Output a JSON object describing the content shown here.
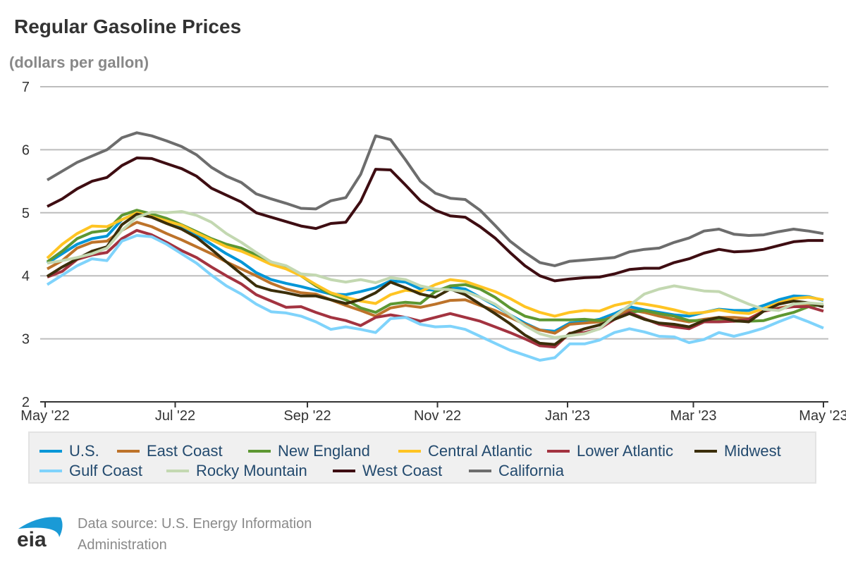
{
  "title": "Regular Gasoline Prices",
  "subtitle": "(dollars per gallon)",
  "source": "Data source: U.S. Energy Information Administration",
  "logo_text": "eia",
  "chart_data": {
    "type": "line",
    "title": "Regular Gasoline Prices",
    "ylabel": "(dollars per gallon)",
    "xlim": [
      "2022-05-01",
      "2023-05-01"
    ],
    "ylim": [
      2,
      7
    ],
    "yticks": [
      2,
      3,
      4,
      5,
      6,
      7
    ],
    "xticks": [
      {
        "date": "2022-05-01",
        "label": "May '22"
      },
      {
        "date": "2022-07-01",
        "label": "Jul '22"
      },
      {
        "date": "2022-09-01",
        "label": "Sep '22"
      },
      {
        "date": "2022-11-01",
        "label": "Nov '22"
      },
      {
        "date": "2023-01-01",
        "label": "Jan '23"
      },
      {
        "date": "2023-03-01",
        "label": "Mar '23"
      },
      {
        "date": "2023-05-01",
        "label": "May '23"
      }
    ],
    "grid": "horizontal",
    "legend_placement": "bottom",
    "x": [
      "2022-05-02",
      "2022-05-09",
      "2022-05-16",
      "2022-05-23",
      "2022-05-30",
      "2022-06-06",
      "2022-06-13",
      "2022-06-20",
      "2022-06-27",
      "2022-07-04",
      "2022-07-11",
      "2022-07-18",
      "2022-07-25",
      "2022-08-01",
      "2022-08-08",
      "2022-08-15",
      "2022-08-22",
      "2022-08-29",
      "2022-09-05",
      "2022-09-12",
      "2022-09-19",
      "2022-09-26",
      "2022-10-03",
      "2022-10-10",
      "2022-10-17",
      "2022-10-24",
      "2022-10-31",
      "2022-11-07",
      "2022-11-14",
      "2022-11-21",
      "2022-11-28",
      "2022-12-05",
      "2022-12-12",
      "2022-12-19",
      "2022-12-26",
      "2023-01-02",
      "2023-01-09",
      "2023-01-16",
      "2023-01-23",
      "2023-01-30",
      "2023-02-06",
      "2023-02-13",
      "2023-02-20",
      "2023-02-27",
      "2023-03-06",
      "2023-03-13",
      "2023-03-20",
      "2023-03-27",
      "2023-04-03",
      "2023-04-10",
      "2023-04-17",
      "2023-04-24",
      "2023-05-01"
    ],
    "series": [
      {
        "name": "U.S.",
        "color": "#0096d7",
        "values": [
          4.2,
          4.35,
          4.5,
          4.59,
          4.63,
          4.89,
          5.0,
          4.96,
          4.87,
          4.78,
          4.65,
          4.5,
          4.35,
          4.22,
          4.05,
          3.94,
          3.88,
          3.83,
          3.77,
          3.71,
          3.7,
          3.75,
          3.81,
          3.92,
          3.9,
          3.79,
          3.77,
          3.82,
          3.79,
          3.66,
          3.53,
          3.38,
          3.25,
          3.14,
          3.12,
          3.25,
          3.27,
          3.31,
          3.4,
          3.51,
          3.46,
          3.42,
          3.38,
          3.36,
          3.42,
          3.47,
          3.45,
          3.45,
          3.53,
          3.62,
          3.68,
          3.67,
          3.61
        ]
      },
      {
        "name": "East Coast",
        "color": "#bd732a",
        "values": [
          4.11,
          4.24,
          4.44,
          4.53,
          4.55,
          4.72,
          4.85,
          4.78,
          4.67,
          4.57,
          4.46,
          4.35,
          4.22,
          4.11,
          4.0,
          3.88,
          3.79,
          3.73,
          3.71,
          3.62,
          3.53,
          3.45,
          3.36,
          3.49,
          3.53,
          3.5,
          3.55,
          3.61,
          3.62,
          3.53,
          3.45,
          3.34,
          3.23,
          3.14,
          3.09,
          3.23,
          3.25,
          3.27,
          3.36,
          3.46,
          3.42,
          3.36,
          3.31,
          3.27,
          3.31,
          3.34,
          3.34,
          3.32,
          3.44,
          3.49,
          3.53,
          3.55,
          3.55
        ]
      },
      {
        "name": "New England",
        "color": "#5d9732",
        "values": [
          4.22,
          4.39,
          4.59,
          4.69,
          4.72,
          4.96,
          5.04,
          4.98,
          4.91,
          4.81,
          4.7,
          4.59,
          4.5,
          4.44,
          4.33,
          4.22,
          4.14,
          4.0,
          3.84,
          3.71,
          3.62,
          3.49,
          3.42,
          3.55,
          3.58,
          3.56,
          3.75,
          3.84,
          3.86,
          3.79,
          3.66,
          3.49,
          3.36,
          3.3,
          3.3,
          3.3,
          3.31,
          3.29,
          3.32,
          3.42,
          3.45,
          3.4,
          3.36,
          3.29,
          3.29,
          3.31,
          3.28,
          3.28,
          3.29,
          3.36,
          3.42,
          3.51,
          3.55
        ]
      },
      {
        "name": "Central Atlantic",
        "color": "#ffc423",
        "values": [
          4.28,
          4.5,
          4.67,
          4.79,
          4.78,
          4.89,
          5.0,
          4.94,
          4.87,
          4.8,
          4.68,
          4.57,
          4.46,
          4.39,
          4.29,
          4.18,
          4.11,
          4.0,
          3.86,
          3.73,
          3.66,
          3.6,
          3.56,
          3.7,
          3.77,
          3.75,
          3.86,
          3.94,
          3.91,
          3.83,
          3.75,
          3.64,
          3.51,
          3.42,
          3.36,
          3.42,
          3.45,
          3.44,
          3.53,
          3.58,
          3.55,
          3.51,
          3.46,
          3.4,
          3.42,
          3.46,
          3.42,
          3.4,
          3.48,
          3.57,
          3.64,
          3.66,
          3.62
        ]
      },
      {
        "name": "Lower Atlantic",
        "color": "#a33340",
        "values": [
          3.98,
          4.07,
          4.26,
          4.33,
          4.37,
          4.59,
          4.72,
          4.65,
          4.53,
          4.4,
          4.29,
          4.14,
          4.0,
          3.87,
          3.7,
          3.6,
          3.5,
          3.51,
          3.42,
          3.34,
          3.29,
          3.21,
          3.34,
          3.38,
          3.34,
          3.28,
          3.34,
          3.4,
          3.34,
          3.28,
          3.19,
          3.1,
          3.0,
          2.89,
          2.87,
          3.09,
          3.1,
          3.16,
          3.31,
          3.42,
          3.32,
          3.23,
          3.19,
          3.16,
          3.27,
          3.27,
          3.28,
          3.31,
          3.44,
          3.48,
          3.51,
          3.51,
          3.44
        ]
      },
      {
        "name": "Midwest",
        "color": "#3b2e0a",
        "values": [
          3.99,
          4.14,
          4.27,
          4.39,
          4.46,
          4.81,
          4.98,
          4.93,
          4.83,
          4.74,
          4.61,
          4.42,
          4.22,
          4.03,
          3.84,
          3.77,
          3.73,
          3.68,
          3.68,
          3.62,
          3.56,
          3.62,
          3.73,
          3.9,
          3.81,
          3.71,
          3.66,
          3.79,
          3.7,
          3.55,
          3.4,
          3.24,
          3.06,
          2.93,
          2.91,
          3.08,
          3.16,
          3.22,
          3.31,
          3.4,
          3.31,
          3.25,
          3.23,
          3.19,
          3.29,
          3.34,
          3.29,
          3.27,
          3.44,
          3.55,
          3.6,
          3.57,
          3.51
        ]
      },
      {
        "name": "Gulf Coast",
        "color": "#7fd3fb",
        "values": [
          3.86,
          4.01,
          4.16,
          4.27,
          4.24,
          4.55,
          4.64,
          4.62,
          4.5,
          4.35,
          4.2,
          4.01,
          3.84,
          3.71,
          3.55,
          3.43,
          3.41,
          3.36,
          3.27,
          3.15,
          3.19,
          3.15,
          3.1,
          3.32,
          3.34,
          3.23,
          3.19,
          3.2,
          3.15,
          3.04,
          2.93,
          2.82,
          2.74,
          2.66,
          2.7,
          2.92,
          2.92,
          2.98,
          3.1,
          3.16,
          3.11,
          3.04,
          3.03,
          2.94,
          2.99,
          3.1,
          3.04,
          3.1,
          3.17,
          3.27,
          3.36,
          3.27,
          3.17
        ]
      },
      {
        "name": "Rocky Mountain",
        "color": "#c3d8b1",
        "values": [
          4.2,
          4.24,
          4.29,
          4.35,
          4.44,
          4.72,
          4.93,
          5.01,
          5.0,
          5.02,
          4.96,
          4.85,
          4.67,
          4.53,
          4.37,
          4.22,
          4.16,
          4.03,
          4.01,
          3.94,
          3.9,
          3.94,
          3.89,
          3.97,
          3.94,
          3.84,
          3.79,
          3.78,
          3.75,
          3.66,
          3.55,
          3.38,
          3.21,
          3.08,
          3.02,
          3.05,
          3.08,
          3.16,
          3.36,
          3.53,
          3.71,
          3.79,
          3.84,
          3.8,
          3.76,
          3.75,
          3.65,
          3.55,
          3.47,
          3.45,
          3.55,
          3.57,
          3.55
        ]
      },
      {
        "name": "West Coast",
        "color": "#3e0d12",
        "values": [
          5.1,
          5.22,
          5.38,
          5.5,
          5.56,
          5.75,
          5.87,
          5.86,
          5.78,
          5.7,
          5.58,
          5.39,
          5.28,
          5.17,
          5.0,
          4.93,
          4.86,
          4.79,
          4.75,
          4.83,
          4.85,
          5.18,
          5.69,
          5.68,
          5.44,
          5.19,
          5.04,
          4.95,
          4.93,
          4.78,
          4.6,
          4.37,
          4.16,
          4.0,
          3.92,
          3.95,
          3.97,
          3.98,
          4.03,
          4.1,
          4.12,
          4.12,
          4.21,
          4.27,
          4.36,
          4.42,
          4.38,
          4.39,
          4.42,
          4.48,
          4.54,
          4.56,
          4.56
        ]
      },
      {
        "name": "California",
        "color": "#6d6d6d",
        "values": [
          5.52,
          5.66,
          5.8,
          5.9,
          6.0,
          6.19,
          6.27,
          6.22,
          6.14,
          6.05,
          5.92,
          5.72,
          5.58,
          5.48,
          5.3,
          5.22,
          5.15,
          5.07,
          5.06,
          5.19,
          5.24,
          5.61,
          6.22,
          6.16,
          5.84,
          5.5,
          5.31,
          5.23,
          5.21,
          5.04,
          4.8,
          4.55,
          4.37,
          4.21,
          4.16,
          4.23,
          4.25,
          4.27,
          4.29,
          4.38,
          4.42,
          4.44,
          4.53,
          4.6,
          4.71,
          4.74,
          4.66,
          4.64,
          4.65,
          4.7,
          4.74,
          4.71,
          4.67
        ]
      }
    ]
  }
}
